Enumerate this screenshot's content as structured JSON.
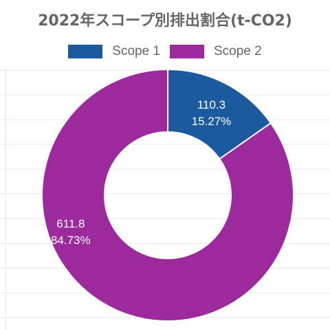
{
  "chart_data": {
    "type": "pie",
    "title": "2022年スコープ別排出割合(t-CO2)",
    "categories": [
      "Scope 1",
      "Scope 2"
    ],
    "values": [
      110.3,
      611.8
    ],
    "percent_labels": [
      "15.27%",
      "84.73%"
    ],
    "value_labels": [
      "110.3",
      "611.8"
    ],
    "colors": [
      "#1c5aa0",
      "#9c2a9c"
    ],
    "legend_position": "top",
    "donut": true
  }
}
